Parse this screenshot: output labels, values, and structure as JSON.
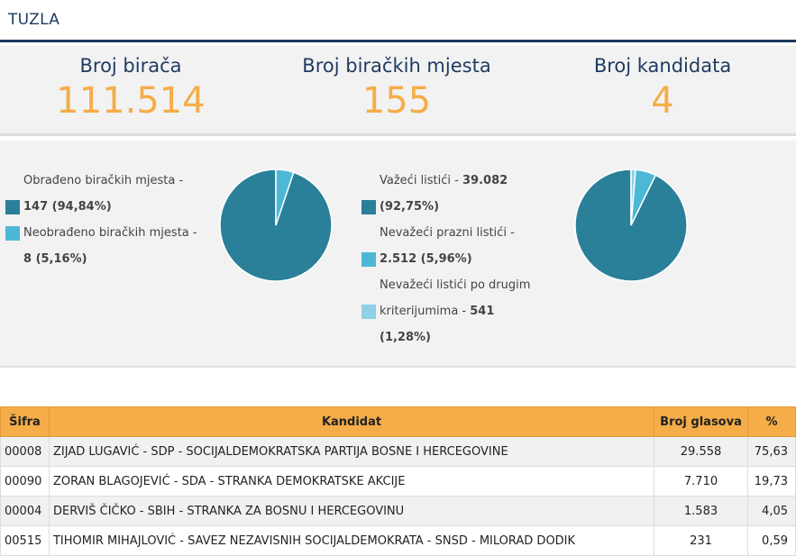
{
  "header": {
    "title": "TUZLA"
  },
  "stats": [
    {
      "label": "Broj birača",
      "value": "111.514"
    },
    {
      "label": "Broj biračkih mjesta",
      "value": "155"
    },
    {
      "label": "Broj kandidata",
      "value": "4"
    }
  ],
  "polling_stations": {
    "legend": [
      {
        "text": "Obrađeno biračkih mjesta -",
        "value": "147 (94,84%)",
        "color": "#2a7f99"
      },
      {
        "text": "Neobrađeno biračkih mjesta -",
        "value": "8 (5,16%)",
        "color": "#4db8d6"
      }
    ]
  },
  "ballots": {
    "legend": [
      {
        "text": "Važeći listići -",
        "value": "39.082",
        "extra": "(92,75%)",
        "color": "#2a7f99"
      },
      {
        "text": "Nevažeći prazni listići -",
        "value": "2.512 (5,96%)",
        "color": "#4db8d6"
      },
      {
        "text_line1": "Nevažeći listići po drugim",
        "text_line2": "kriterijumima -",
        "value": "541",
        "extra": "(1,28%)",
        "color": "#8fd0e6"
      }
    ]
  },
  "chart_data": [
    {
      "type": "pie",
      "labels": [
        "Obrađeno biračkih mjesta",
        "Neobrađeno biračkih mjesta"
      ],
      "values": [
        94.84,
        5.16
      ],
      "colors": [
        "#2a7f99",
        "#4db8d6"
      ]
    },
    {
      "type": "pie",
      "labels": [
        "Važeći listići",
        "Nevažeći prazni listići",
        "Nevažeći listići po drugim kriterijumima"
      ],
      "values": [
        92.75,
        5.96,
        1.28
      ],
      "colors": [
        "#2a7f99",
        "#4db8d6",
        "#8fd0e6"
      ]
    }
  ],
  "table": {
    "headers": [
      "Šifra",
      "Kandidat",
      "Broj glasova",
      "%"
    ],
    "rows": [
      {
        "code": "00008",
        "candidate": "ZIJAD LUGAVIĆ - SDP - SOCIJALDEMOKRATSKA PARTIJA BOSNE I HERCEGOVINE",
        "votes": "29.558",
        "pct": "75,63"
      },
      {
        "code": "00090",
        "candidate": "ZORAN BLAGOJEVIĆ - SDA - STRANKA DEMOKRATSKE AKCIJE",
        "votes": "7.710",
        "pct": "19,73"
      },
      {
        "code": "00004",
        "candidate": "DERVIŠ ČIČKO - SBIH - STRANKA ZA BOSNU I HERCEGOVINU",
        "votes": "1.583",
        "pct": "4,05"
      },
      {
        "code": "00515",
        "candidate": "TIHOMIR MIHAJLOVIĆ - SAVEZ NEZAVISNIH SOCIJALDEMOKRATA - SNSD - MILORAD DODIK",
        "votes": "231",
        "pct": "0,59"
      }
    ]
  }
}
